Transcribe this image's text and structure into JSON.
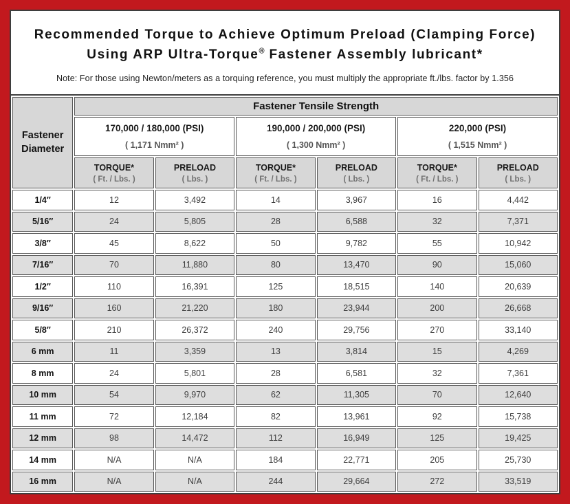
{
  "colors": {
    "frame_red": "#C2191E",
    "panel_border": "#3E3E3E",
    "cell_border": "#565656",
    "header_gray": "#D7D7D7",
    "stripe_gray": "#DEDEDE",
    "title_text": "#111111"
  },
  "header": {
    "title_line1": "Recommended Torque to Achieve Optimum Preload (Clamping Force)",
    "title_line2_pre": "Using ARP Ultra-Torque",
    "title_line2_reg": "®",
    "title_line2_post": " Fastener Assembly lubricant*",
    "note": "Note: For those using Newton/meters as a torquing reference, you must multiply the appropriate ft./lbs. factor by 1.356"
  },
  "table": {
    "corner_line1": "Fastener",
    "corner_line2": "Diameter",
    "tensile_header": "Fastener Tensile Strength",
    "groups": [
      {
        "psi": "170,000 / 180,000 (PSI)",
        "nmm": "( 1,171 Nmm² )"
      },
      {
        "psi": "190,000 / 200,000 (PSI)",
        "nmm": "( 1,300 Nmm² )"
      },
      {
        "psi": "220,000 (PSI)",
        "nmm": "( 1,515 Nmm² )"
      }
    ],
    "col_headers": [
      {
        "title": "TORQUE*",
        "unit": "( Ft. / Lbs. )"
      },
      {
        "title": "PRELOAD",
        "unit": "( Lbs. )"
      },
      {
        "title": "TORQUE*",
        "unit": "( Ft. / Lbs. )"
      },
      {
        "title": "PRELOAD",
        "unit": "( Lbs. )"
      },
      {
        "title": "TORQUE*",
        "unit": "( Ft. / Lbs. )"
      },
      {
        "title": "PRELOAD",
        "unit": "( Lbs. )"
      }
    ],
    "rows": [
      {
        "diameter": "1/4″",
        "values": [
          "12",
          "3,492",
          "14",
          "3,967",
          "16",
          "4,442"
        ]
      },
      {
        "diameter": "5/16″",
        "values": [
          "24",
          "5,805",
          "28",
          "6,588",
          "32",
          "7,371"
        ]
      },
      {
        "diameter": "3/8″",
        "values": [
          "45",
          "8,622",
          "50",
          "9,782",
          "55",
          "10,942"
        ]
      },
      {
        "diameter": "7/16″",
        "values": [
          "70",
          "11,880",
          "80",
          "13,470",
          "90",
          "15,060"
        ]
      },
      {
        "diameter": "1/2″",
        "values": [
          "110",
          "16,391",
          "125",
          "18,515",
          "140",
          "20,639"
        ]
      },
      {
        "diameter": "9/16″",
        "values": [
          "160",
          "21,220",
          "180",
          "23,944",
          "200",
          "26,668"
        ]
      },
      {
        "diameter": "5/8″",
        "values": [
          "210",
          "26,372",
          "240",
          "29,756",
          "270",
          "33,140"
        ]
      },
      {
        "diameter": "6 mm",
        "values": [
          "11",
          "3,359",
          "13",
          "3,814",
          "15",
          "4,269"
        ]
      },
      {
        "diameter": "8 mm",
        "values": [
          "24",
          "5,801",
          "28",
          "6,581",
          "32",
          "7,361"
        ]
      },
      {
        "diameter": "10 mm",
        "values": [
          "54",
          "9,970",
          "62",
          "11,305",
          "70",
          "12,640"
        ]
      },
      {
        "diameter": "11 mm",
        "values": [
          "72",
          "12,184",
          "82",
          "13,961",
          "92",
          "15,738"
        ]
      },
      {
        "diameter": "12 mm",
        "values": [
          "98",
          "14,472",
          "112",
          "16,949",
          "125",
          "19,425"
        ]
      },
      {
        "diameter": "14 mm",
        "values": [
          "N/A",
          "N/A",
          "184",
          "22,771",
          "205",
          "25,730"
        ]
      },
      {
        "diameter": "16 mm",
        "values": [
          "N/A",
          "N/A",
          "244",
          "29,664",
          "272",
          "33,519"
        ]
      }
    ]
  }
}
